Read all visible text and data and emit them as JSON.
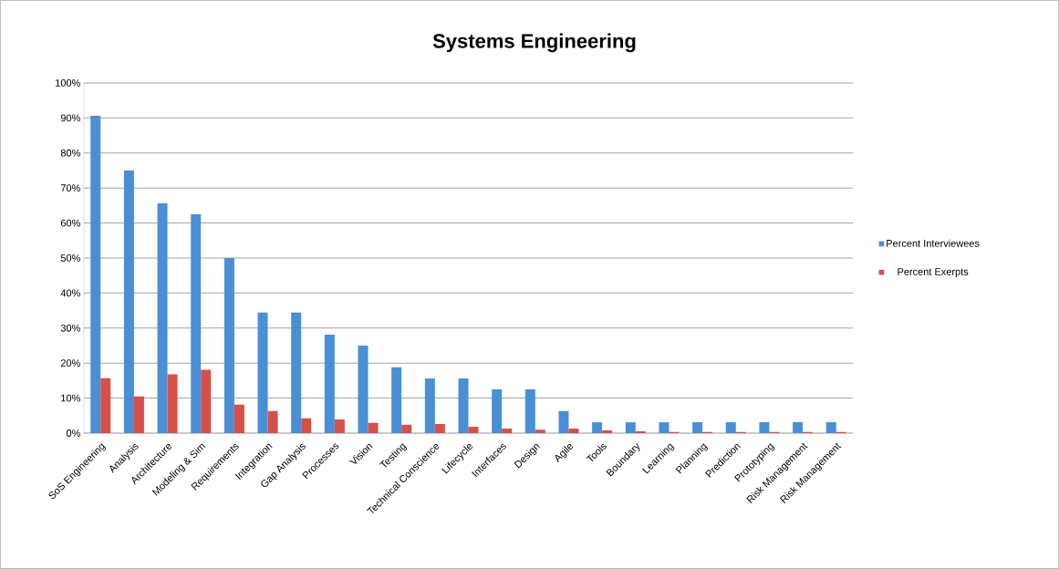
{
  "chart_data": {
    "type": "bar",
    "title": "Systems Engineering",
    "categories": [
      "SoS Engineering",
      "Analysis",
      "Architecture",
      "Modeling & Sim",
      "Requirements",
      "Integration",
      "Gap Analysis",
      "Processes",
      "Vision",
      "Testing",
      "Technical Conscience",
      "Lifecycle",
      "Interfaces",
      "Design",
      "Agile",
      "Tools",
      "Boundary",
      "Learning",
      "Planning",
      "Prediction",
      "Prototyping",
      "Risk Management",
      "Risk Management"
    ],
    "series": [
      {
        "name": "Percent Interviewees",
        "color": "#4a8fd6",
        "values": [
          90.6,
          75,
          65.6,
          62.5,
          50,
          34.4,
          34.4,
          28.1,
          25,
          18.8,
          15.6,
          15.6,
          12.5,
          12.5,
          6.3,
          3.1,
          3.1,
          3.1,
          3.1,
          3.1,
          3.1,
          3.1,
          3.1
        ]
      },
      {
        "name": "Percent Exerpts",
        "color": "#d6504a",
        "values": [
          15.7,
          10.5,
          16.8,
          18.1,
          8.1,
          6.3,
          4.2,
          3.9,
          2.9,
          2.4,
          2.6,
          1.8,
          1.3,
          1.0,
          1.3,
          0.8,
          0.5,
          0.3,
          0.3,
          0.3,
          0.3,
          0.3,
          0.3
        ]
      }
    ],
    "ylim": [
      0,
      100
    ],
    "yticks": [
      {
        "value": 0,
        "label": "0%"
      },
      {
        "value": 10,
        "label": "10%"
      },
      {
        "value": 20,
        "label": "20%"
      },
      {
        "value": 30,
        "label": "30%"
      },
      {
        "value": 40,
        "label": "40%"
      },
      {
        "value": 50,
        "label": "50%"
      },
      {
        "value": 60,
        "label": "60%"
      },
      {
        "value": 70,
        "label": "70%"
      },
      {
        "value": 80,
        "label": "80%"
      },
      {
        "value": 90,
        "label": "90%"
      },
      {
        "value": 100,
        "label": "100%"
      }
    ],
    "grid": "y",
    "legend": "right"
  }
}
